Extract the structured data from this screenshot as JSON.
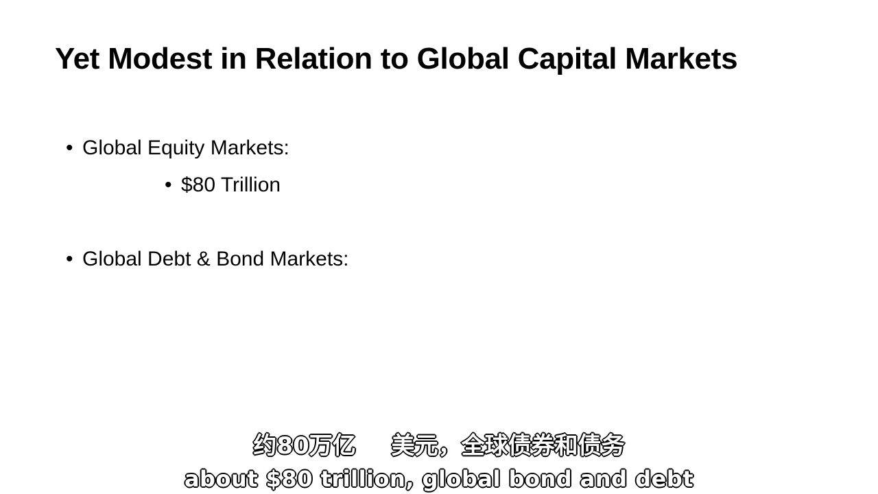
{
  "slide": {
    "title": "Yet Modest in Relation to Global Capital Markets",
    "bullets": [
      {
        "text": "Global Equity Markets:",
        "sub": "$80 Trillion"
      },
      {
        "text": "Global Debt & Bond Markets:"
      }
    ],
    "bullet_glyph": "•"
  },
  "subtitles": {
    "zh": "约80万亿 美元，全球债券和债务",
    "en": "about $80 trillion, global bond and debt"
  }
}
